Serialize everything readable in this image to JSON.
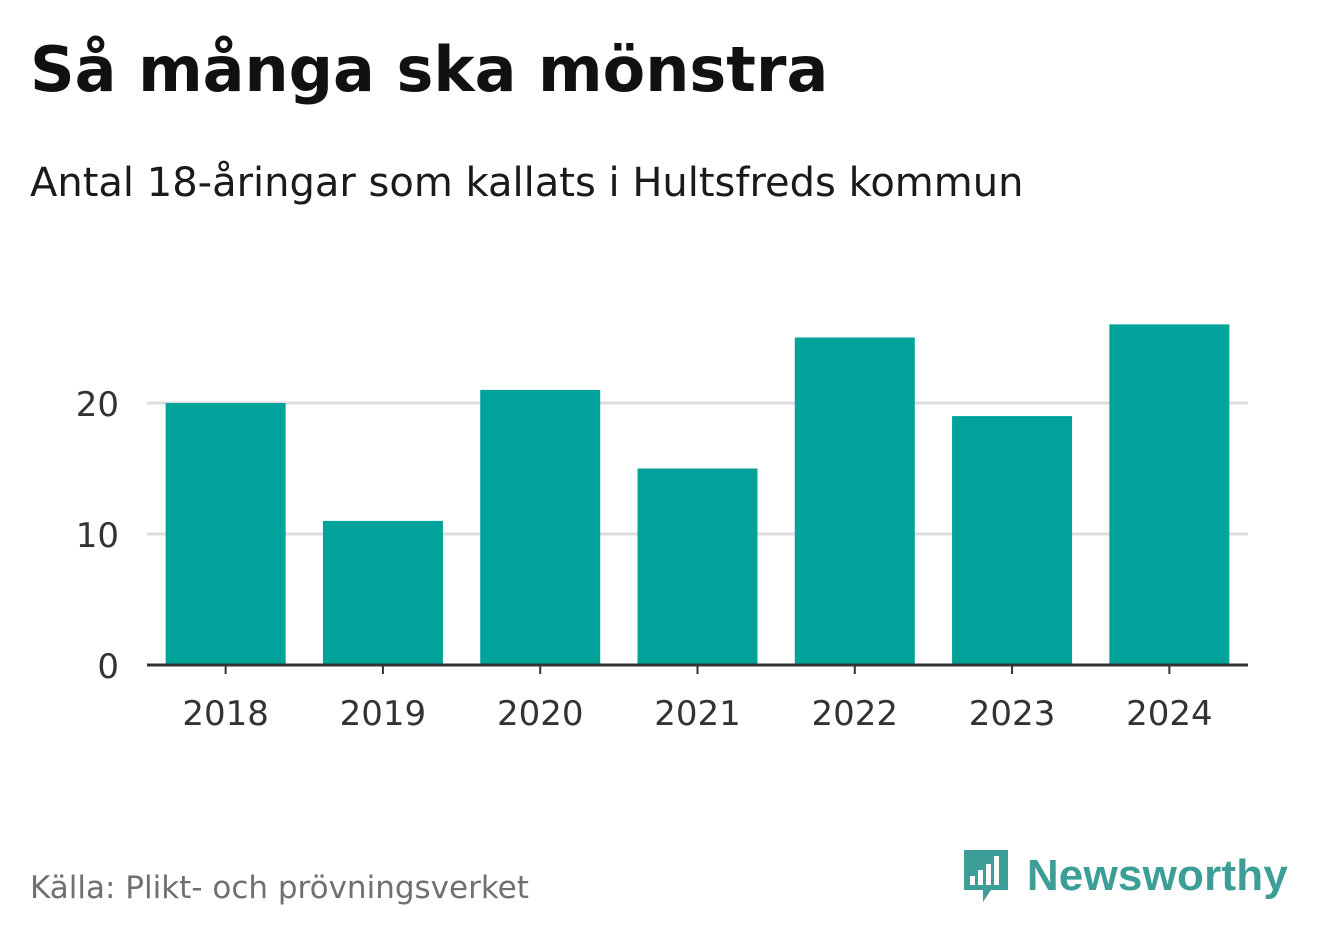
{
  "header": {
    "title": "Så många ska mönstra",
    "subtitle": "Antal 18-åringar som kallats i Hultsfreds kommun"
  },
  "footer": {
    "source": "Källa: Plikt- och prövningsverket",
    "brand": "Newsworthy",
    "brand_icon": "bar-chart-logo-icon"
  },
  "colors": {
    "bar": "#00a29a",
    "grid": "#dddddd",
    "axis": "#333333",
    "brand": "#3c9e96"
  },
  "chart_data": {
    "type": "bar",
    "categories": [
      "2018",
      "2019",
      "2020",
      "2021",
      "2022",
      "2023",
      "2024"
    ],
    "values": [
      20,
      11,
      21,
      15,
      25,
      19,
      26
    ],
    "title": "Så många ska mönstra",
    "subtitle": "Antal 18-åringar som kallats i Hultsfreds kommun",
    "xlabel": "",
    "ylabel": "",
    "yticks": [
      0,
      10,
      20
    ],
    "ylim": [
      0,
      26
    ],
    "grid": true,
    "legend": "none"
  }
}
